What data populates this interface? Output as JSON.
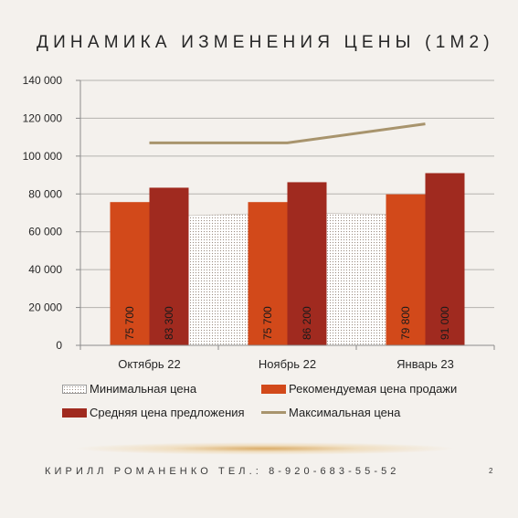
{
  "title": "ДИНАМИКА ИЗМЕНЕНИЯ ЦЕНЫ (1М2)",
  "footer": "КИРИЛЛ РОМАНЕНКО ТЕЛ.: 8-920-683-55-52",
  "page_number": "2",
  "legend": {
    "min": "Минимальная цена",
    "rec": "Рекомендуемая цена продажи",
    "avg": "Средняя цена предложения",
    "max": "Максимальная цена"
  },
  "colors": {
    "rec": "#d2491a",
    "avg": "#a02a1f",
    "max": "#a8946d",
    "min_dots": "#9a8b80",
    "axis": "#8c8c8c",
    "grid": "#b5b2ae"
  },
  "chart_data": {
    "type": "bar",
    "categories": [
      "Октябрь 22",
      "Ноябрь 22",
      "Январь 23"
    ],
    "ylim": [
      0,
      140000
    ],
    "yticks": [
      0,
      20000,
      40000,
      60000,
      80000,
      100000,
      120000,
      140000
    ],
    "ytick_labels": [
      "0",
      "20 000",
      "40 000",
      "60 000",
      "80 000",
      "100 000",
      "120 000",
      "140 000"
    ],
    "grid": true,
    "legend_position": "bottom",
    "series": [
      {
        "name": "Минимальная цена",
        "type": "area",
        "values": [
          68000,
          70000,
          69000
        ]
      },
      {
        "name": "Рекомендуемая цена продажи",
        "type": "bar",
        "values": [
          75700,
          75700,
          79800
        ],
        "labels": [
          "75 700",
          "75 700",
          "79 800"
        ]
      },
      {
        "name": "Средняя цена предложения",
        "type": "bar",
        "values": [
          83300,
          86200,
          91000
        ],
        "labels": [
          "83 300",
          "86 200",
          "91 000"
        ]
      },
      {
        "name": "Максимальная цена",
        "type": "line",
        "values": [
          107000,
          107000,
          117000
        ]
      }
    ]
  }
}
